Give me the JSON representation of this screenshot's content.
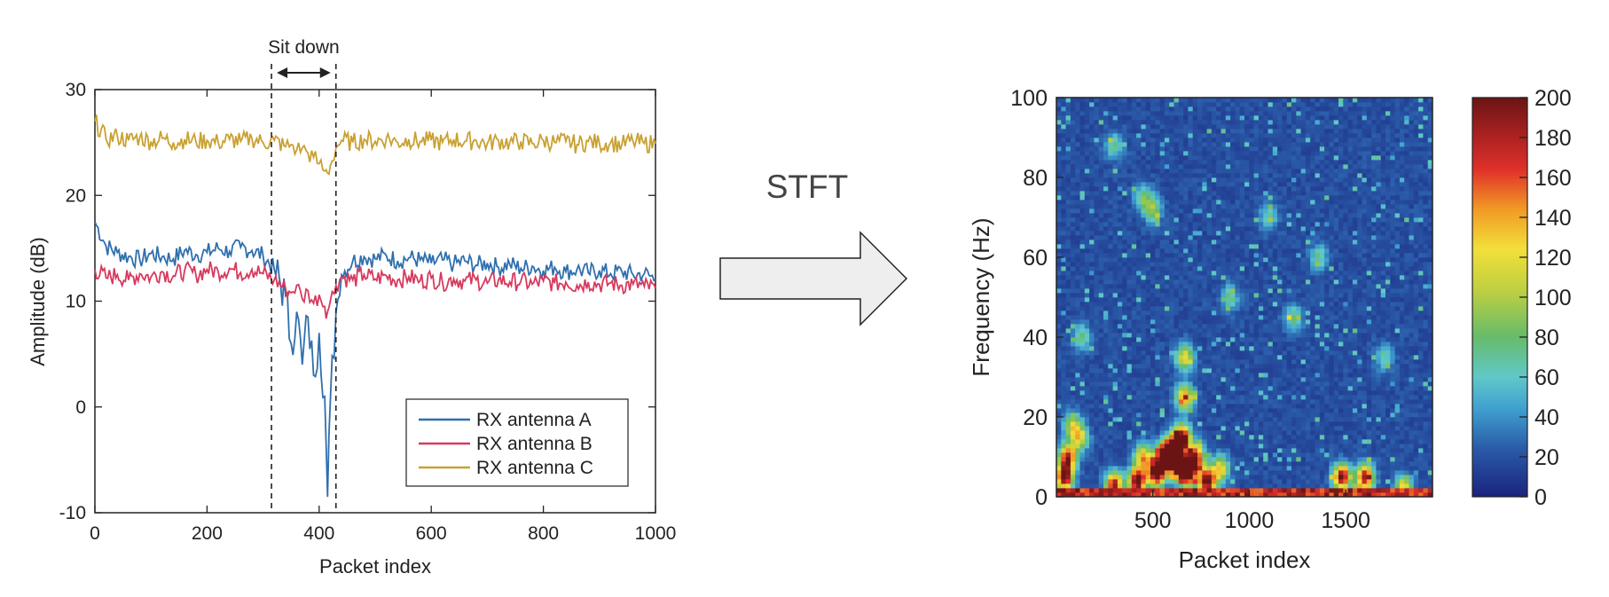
{
  "arrow_label": "STFT",
  "chart_data": [
    {
      "type": "line",
      "title": "",
      "xlabel": "Packet index",
      "ylabel": "Amplitude (dB)",
      "xlim": [
        0,
        1000
      ],
      "ylim": [
        -10,
        30
      ],
      "xticks": [
        0,
        200,
        400,
        600,
        800,
        1000
      ],
      "xtick_labels": [
        "0",
        "200",
        "400",
        "600",
        "800",
        "1000"
      ],
      "yticks": [
        -10,
        0,
        10,
        20,
        30
      ],
      "ytick_labels": [
        "-10",
        "0",
        "10",
        "20",
        "30"
      ],
      "grid": false,
      "legend": "bottom-right",
      "annotation": {
        "text": "Sit down",
        "x_start": 315,
        "x_end": 430
      },
      "x": [
        0,
        20,
        40,
        60,
        80,
        100,
        120,
        140,
        160,
        180,
        200,
        220,
        240,
        260,
        280,
        300,
        320,
        340,
        350,
        360,
        370,
        380,
        390,
        400,
        410,
        415,
        420,
        430,
        440,
        460,
        480,
        500,
        520,
        540,
        560,
        580,
        600,
        620,
        640,
        660,
        680,
        700,
        720,
        740,
        760,
        780,
        800,
        820,
        840,
        860,
        880,
        900,
        920,
        940,
        960,
        980,
        1000
      ],
      "series": [
        {
          "name": "RX antenna A",
          "color": "#2f6fae",
          "values": [
            17.5,
            15.2,
            14.6,
            14.2,
            13.9,
            14.5,
            14.2,
            14.0,
            14.8,
            14.4,
            14.6,
            15.0,
            14.7,
            15.1,
            14.8,
            14.3,
            13.0,
            10.5,
            6.0,
            9.0,
            4.0,
            8.5,
            3.0,
            7.0,
            1.0,
            -8.5,
            0.5,
            9.0,
            12.5,
            13.8,
            14.2,
            14.0,
            14.3,
            13.8,
            14.1,
            13.9,
            13.6,
            13.9,
            13.5,
            13.8,
            13.4,
            13.6,
            13.2,
            13.5,
            13.1,
            13.3,
            12.9,
            13.2,
            12.8,
            13.0,
            12.7,
            12.9,
            12.6,
            12.8,
            12.5,
            12.6,
            12.1
          ]
        },
        {
          "name": "RX antenna B",
          "color": "#d63a5e",
          "values": [
            13.0,
            12.2,
            12.5,
            12.0,
            12.6,
            12.3,
            12.8,
            12.4,
            12.9,
            12.5,
            13.0,
            12.8,
            13.1,
            12.7,
            13.0,
            12.6,
            12.0,
            11.2,
            10.8,
            11.5,
            10.2,
            11.0,
            9.8,
            10.6,
            9.5,
            9.0,
            10.0,
            11.5,
            12.3,
            12.0,
            12.5,
            12.1,
            12.4,
            12.0,
            12.3,
            11.9,
            12.2,
            11.8,
            12.1,
            11.9,
            12.0,
            11.7,
            12.0,
            11.8,
            11.9,
            11.6,
            11.9,
            11.7,
            11.8,
            11.5,
            11.8,
            11.6,
            11.7,
            11.5,
            11.6,
            11.4,
            11.2
          ]
        },
        {
          "name": "RX antenna C",
          "color": "#c9a132",
          "values": [
            27.0,
            25.3,
            25.6,
            25.2,
            25.5,
            25.1,
            25.4,
            25.0,
            25.3,
            25.1,
            25.2,
            25.0,
            25.3,
            25.1,
            25.4,
            25.0,
            25.2,
            24.6,
            24.8,
            24.3,
            24.5,
            24.0,
            23.6,
            23.0,
            22.3,
            22.1,
            22.8,
            24.5,
            25.2,
            25.0,
            25.3,
            25.1,
            25.4,
            25.0,
            25.3,
            25.1,
            25.2,
            25.0,
            25.3,
            25.1,
            25.2,
            24.9,
            25.2,
            25.0,
            25.1,
            24.9,
            25.2,
            25.0,
            25.1,
            24.8,
            25.1,
            24.9,
            25.0,
            24.8,
            25.1,
            24.9,
            24.9
          ]
        }
      ]
    },
    {
      "type": "heatmap",
      "title": "",
      "xlabel": "Packet index",
      "ylabel": "Frequency (Hz)",
      "xlim": [
        0,
        1950
      ],
      "ylim": [
        0,
        100
      ],
      "xticks": [
        500,
        1000,
        1500
      ],
      "xtick_labels": [
        "500",
        "1000",
        "1500"
      ],
      "yticks": [
        0,
        20,
        40,
        60,
        80,
        100
      ],
      "ytick_labels": [
        "0",
        "20",
        "40",
        "60",
        "80",
        "100"
      ],
      "colorbar": {
        "range": [
          0,
          200
        ],
        "ticks": [
          0,
          20,
          40,
          60,
          80,
          100,
          120,
          140,
          160,
          180,
          200
        ],
        "tick_labels": [
          "0",
          "20",
          "40",
          "60",
          "80",
          "100",
          "120",
          "140",
          "160",
          "180",
          "200"
        ],
        "colormap": "jet"
      },
      "background_level": 12,
      "hotspots": [
        {
          "x": 40,
          "y": 5,
          "value": 190
        },
        {
          "x": 60,
          "y": 10,
          "value": 160
        },
        {
          "x": 120,
          "y": 15,
          "value": 100
        },
        {
          "x": 130,
          "y": 40,
          "value": 60
        },
        {
          "x": 80,
          "y": 18,
          "value": 80
        },
        {
          "x": 300,
          "y": 3,
          "value": 170
        },
        {
          "x": 420,
          "y": 4,
          "value": 200
        },
        {
          "x": 450,
          "y": 10,
          "value": 120
        },
        {
          "x": 520,
          "y": 6,
          "value": 200
        },
        {
          "x": 560,
          "y": 10,
          "value": 190
        },
        {
          "x": 600,
          "y": 12,
          "value": 200
        },
        {
          "x": 630,
          "y": 8,
          "value": 200
        },
        {
          "x": 650,
          "y": 15,
          "value": 180
        },
        {
          "x": 665,
          "y": 25,
          "value": 130
        },
        {
          "x": 665,
          "y": 35,
          "value": 100
        },
        {
          "x": 680,
          "y": 6,
          "value": 200
        },
        {
          "x": 720,
          "y": 10,
          "value": 170
        },
        {
          "x": 780,
          "y": 4,
          "value": 190
        },
        {
          "x": 850,
          "y": 7,
          "value": 110
        },
        {
          "x": 1480,
          "y": 5,
          "value": 180
        },
        {
          "x": 1600,
          "y": 5,
          "value": 170
        },
        {
          "x": 1800,
          "y": 2,
          "value": 120
        },
        {
          "x": 450,
          "y": 75,
          "value": 60
        },
        {
          "x": 500,
          "y": 72,
          "value": 70
        },
        {
          "x": 1230,
          "y": 45,
          "value": 60
        },
        {
          "x": 1360,
          "y": 60,
          "value": 55
        },
        {
          "x": 900,
          "y": 50,
          "value": 55
        },
        {
          "x": 1100,
          "y": 70,
          "value": 50
        },
        {
          "x": 1700,
          "y": 35,
          "value": 50
        },
        {
          "x": 300,
          "y": 88,
          "value": 55
        }
      ],
      "baseline_band": {
        "y_max": 2,
        "value": 200
      }
    }
  ]
}
